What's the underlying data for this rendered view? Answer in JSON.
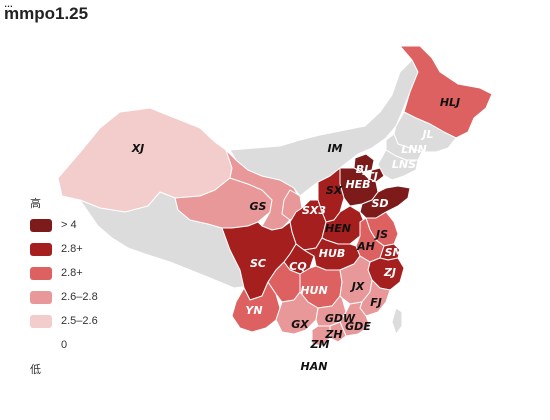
{
  "title": "mmpo1.25",
  "title_fragment": "…",
  "legend": {
    "high_label": "高",
    "low_label": "低",
    "items": [
      {
        "label": "> 4",
        "color": "#7d1a1a"
      },
      {
        "label": "2.8+",
        "color": "#a51f1f"
      },
      {
        "label": "2.8+",
        "color": "#dd6161"
      },
      {
        "label": "2.6–2.8",
        "color": "#e89898"
      },
      {
        "label": "2.5–2.6",
        "color": "#f3cccc"
      },
      {
        "label": "0",
        "color": "#ffffff"
      }
    ]
  },
  "regions": [
    {
      "code": "XJ",
      "label": "XJ",
      "value_class": "2.5–2.6",
      "color": "#f3cccc"
    },
    {
      "code": "XZ",
      "label": "",
      "value_class": "no data",
      "color": "#dcdcdc"
    },
    {
      "code": "QH",
      "label": "",
      "value_class": "2.6–2.8",
      "color": "#e89898"
    },
    {
      "code": "GS",
      "label": "GS",
      "value_class": "2.6–2.8",
      "color": "#e89898"
    },
    {
      "code": "IM",
      "label": "IM",
      "value_class": "no data",
      "color": "#dcdcdc"
    },
    {
      "code": "HLJ",
      "label": "HLJ",
      "value_class": "2.8+",
      "color": "#dd6161"
    },
    {
      "code": "JL",
      "label": "JL",
      "value_class": "no data",
      "color": "#dcdcdc"
    },
    {
      "code": "LNN",
      "label": "LNN",
      "value_class": "no data",
      "color": "#dcdcdc"
    },
    {
      "code": "LNS",
      "label": "LNS",
      "value_class": "no data",
      "color": "#dcdcdc"
    },
    {
      "code": "BJ",
      "label": "BJ",
      "value_class": "> 4",
      "color": "#7d1a1a"
    },
    {
      "code": "TJ",
      "label": "TJ",
      "value_class": "> 4",
      "color": "#7d1a1a"
    },
    {
      "code": "HEB",
      "label": "HEB",
      "value_class": "> 4",
      "color": "#7d1a1a"
    },
    {
      "code": "SX",
      "label": "SX",
      "value_class": "2.8+",
      "color": "#a51f1f"
    },
    {
      "code": "SD",
      "label": "SD",
      "value_class": "> 4",
      "color": "#7d1a1a"
    },
    {
      "code": "NX",
      "label": "",
      "value_class": "2.6–2.8",
      "color": "#e89898"
    },
    {
      "code": "SX3",
      "label": "SX3",
      "value_class": "2.8+",
      "color": "#a51f1f"
    },
    {
      "code": "HEN",
      "label": "HEN",
      "value_class": "2.8+",
      "color": "#a51f1f"
    },
    {
      "code": "JS",
      "label": "JS",
      "value_class": "2.8+",
      "color": "#dd6161"
    },
    {
      "code": "AH",
      "label": "AH",
      "value_class": "2.8+",
      "color": "#dd6161"
    },
    {
      "code": "SM",
      "label": "SM",
      "value_class": "2.8+",
      "color": "#a51f1f"
    },
    {
      "code": "ZJ",
      "label": "ZJ",
      "value_class": "2.8+",
      "color": "#a51f1f"
    },
    {
      "code": "SC",
      "label": "SC",
      "value_class": "2.8+",
      "color": "#a51f1f"
    },
    {
      "code": "CQ",
      "label": "CQ",
      "value_class": "2.8+",
      "color": "#a51f1f"
    },
    {
      "code": "HUB",
      "label": "HUB",
      "value_class": "2.8+",
      "color": "#a51f1f"
    },
    {
      "code": "HUN",
      "label": "HUN",
      "value_class": "2.8+",
      "color": "#dd6161"
    },
    {
      "code": "JX",
      "label": "JX",
      "value_class": "2.6–2.8",
      "color": "#e89898"
    },
    {
      "code": "FJ",
      "label": "FJ",
      "value_class": "2.6–2.8",
      "color": "#e89898"
    },
    {
      "code": "YN",
      "label": "YN",
      "value_class": "2.8+",
      "color": "#dd6161"
    },
    {
      "code": "GZ",
      "label": "",
      "value_class": "2.8+",
      "color": "#dd6161"
    },
    {
      "code": "GX",
      "label": "GX",
      "value_class": "2.6–2.8",
      "color": "#e89898"
    },
    {
      "code": "GDW",
      "label": "GDW",
      "value_class": "2.6–2.8",
      "color": "#e89898"
    },
    {
      "code": "GDE",
      "label": "GDE",
      "value_class": "2.6–2.8",
      "color": "#e89898"
    },
    {
      "code": "ZH",
      "label": "ZH",
      "value_class": "2.6–2.8",
      "color": "#e89898"
    },
    {
      "code": "ZM",
      "label": "ZM",
      "value_class": "2.6–2.8",
      "color": "#e89898"
    },
    {
      "code": "HAN",
      "label": "HAN",
      "value_class": "0",
      "color": "#ffffff"
    },
    {
      "code": "TW",
      "label": "",
      "value_class": "no data",
      "color": "#dcdcdc"
    }
  ]
}
